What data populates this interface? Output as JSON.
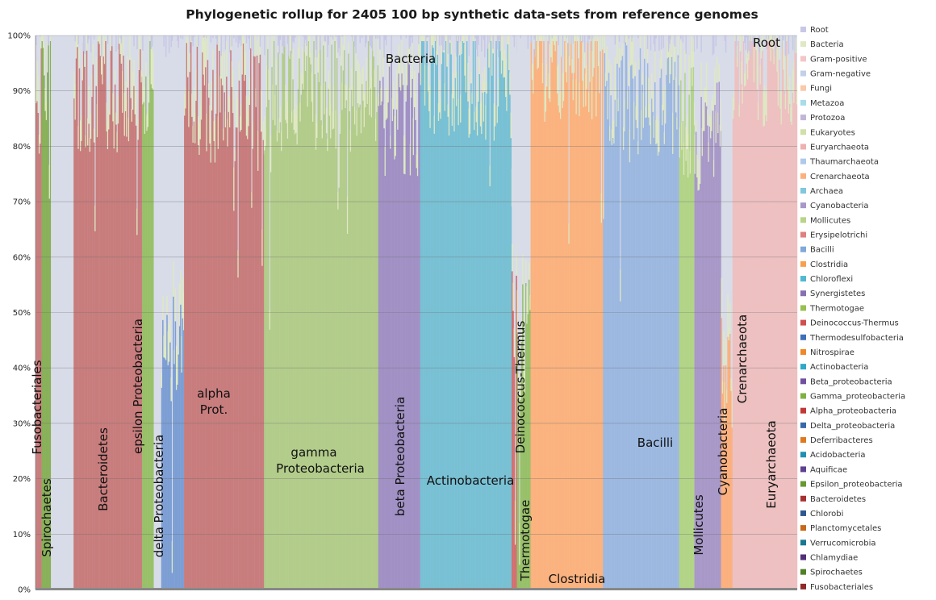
{
  "chart_data": {
    "type": "bar",
    "stacked": true,
    "title": "Phylogenetic rollup for 2405 100 bp synthetic data-sets from reference genomes",
    "ylim": [
      0,
      100
    ],
    "y_ticks": [
      "0%",
      "10%",
      "20%",
      "30%",
      "40%",
      "50%",
      "60%",
      "70%",
      "80%",
      "90%",
      "100%"
    ],
    "grid": true,
    "legend_position": "right",
    "legend": [
      {
        "name": "Root",
        "color": "#c8c8e6"
      },
      {
        "name": "Bacteria",
        "color": "#dfe8c4"
      },
      {
        "name": "Gram-positive",
        "color": "#f2c6c6"
      },
      {
        "name": "Gram-negative",
        "color": "#c2d0e8"
      },
      {
        "name": "Fungi",
        "color": "#fbc9a8"
      },
      {
        "name": "Metazoa",
        "color": "#a8dcea"
      },
      {
        "name": "Protozoa",
        "color": "#c2b6d8"
      },
      {
        "name": "Eukaryotes",
        "color": "#d0e0a8"
      },
      {
        "name": "Euryarchaeota",
        "color": "#eeb0b0"
      },
      {
        "name": "Thaumarchaeota",
        "color": "#b0c8ea"
      },
      {
        "name": "Crenarchaeota",
        "color": "#fbb07e"
      },
      {
        "name": "Archaea",
        "color": "#80c8dc"
      },
      {
        "name": "Cyanobacteria",
        "color": "#a898c8"
      },
      {
        "name": "Mollicutes",
        "color": "#b8d488"
      },
      {
        "name": "Erysipelotrichi",
        "color": "#e08080"
      },
      {
        "name": "Bacilli",
        "color": "#80a8d8"
      },
      {
        "name": "Clostridia",
        "color": "#f8a050"
      },
      {
        "name": "Chloroflexi",
        "color": "#50b8d0"
      },
      {
        "name": "Synergistetes",
        "color": "#8870b0"
      },
      {
        "name": "Thermotogae",
        "color": "#98c050"
      },
      {
        "name": "Deinococcus-Thermus",
        "color": "#d05050"
      },
      {
        "name": "Thermodesulfobacteria",
        "color": "#4070b8"
      },
      {
        "name": "Nitrospirae",
        "color": "#f08828"
      },
      {
        "name": "Actinobacteria",
        "color": "#30a8c8"
      },
      {
        "name": "Beta_proteobacteria",
        "color": "#7050a0"
      },
      {
        "name": "Gamma_proteobacteria",
        "color": "#80b040"
      },
      {
        "name": "Alpha_proteobacteria",
        "color": "#c03838"
      },
      {
        "name": "Delta_proteobacteria",
        "color": "#3868a8"
      },
      {
        "name": "Deferribacteres",
        "color": "#e07820"
      },
      {
        "name": "Acidobacteria",
        "color": "#2090b0"
      },
      {
        "name": "Aquificae",
        "color": "#604090"
      },
      {
        "name": "Epsilon_proteobacteria",
        "color": "#689830"
      },
      {
        "name": "Bacteroidetes",
        "color": "#a83030"
      },
      {
        "name": "Chlorobi",
        "color": "#305890"
      },
      {
        "name": "Planctomycetales",
        "color": "#c86818"
      },
      {
        "name": "Verrucomicrobia",
        "color": "#187890"
      },
      {
        "name": "Chlamydiae",
        "color": "#503078"
      },
      {
        "name": "Spirochaetes",
        "color": "#508028"
      },
      {
        "name": "Fusobacteriales",
        "color": "#902828"
      }
    ],
    "category_groups": [
      {
        "name": "Fusobacteriales",
        "color": "#c87c7c",
        "start": 0,
        "end": 0.8,
        "level": 0.88
      },
      {
        "name": "Spirochaetes",
        "color": "#88b058",
        "start": 0.8,
        "end": 2.0,
        "level": 0.94
      },
      {
        "name": "Bacteroidetes",
        "color": "#c87c7c",
        "start": 5.0,
        "end": 14.0,
        "level": 0.9
      },
      {
        "name": "epsilon Proteobacteria",
        "color": "#98c068",
        "start": 14.0,
        "end": 15.5,
        "level": 0.92
      },
      {
        "name": "delta Proteobacteria",
        "color": "#7c9ed4",
        "start": 16.5,
        "end": 19.5,
        "level": 0.43
      },
      {
        "name": "alpha Prot.",
        "color": "#c87c7c",
        "start": 19.5,
        "end": 30.0,
        "level": 0.88
      },
      {
        "name": "gamma Proteobacteria",
        "color": "#b2cc8a",
        "start": 30.0,
        "end": 45.0,
        "level": 0.9
      },
      {
        "name": "beta Proteobacteria",
        "color": "#a090c4",
        "start": 45.0,
        "end": 50.5,
        "level": 0.85
      },
      {
        "name": "Actinobacteria",
        "color": "#78c0d4",
        "start": 50.5,
        "end": 62.5,
        "level": 0.92
      },
      {
        "name": "Deinococcus-Thermus",
        "color": "#d27070",
        "start": 62.5,
        "end": 63.2,
        "level": 0.5
      },
      {
        "name": "Thermotogae",
        "color": "#98c068",
        "start": 63.2,
        "end": 65.0,
        "level": 0.45
      },
      {
        "name": "Clostridia",
        "color": "#fbb27e",
        "start": 65.0,
        "end": 74.5,
        "level": 0.94
      },
      {
        "name": "Bacilli",
        "color": "#9cb8e0",
        "start": 74.5,
        "end": 84.5,
        "level": 0.88
      },
      {
        "name": "Mollicutes",
        "color": "#b2d486",
        "start": 84.5,
        "end": 86.5,
        "level": 0.84
      },
      {
        "name": "Cyanobacteria",
        "color": "#a898c8",
        "start": 86.5,
        "end": 90.0,
        "level": 0.82
      },
      {
        "name": "Crenarchaeota",
        "color": "#fbb07e",
        "start": 90.0,
        "end": 91.5,
        "level": 0.4
      },
      {
        "name": "Euryarchaeota",
        "color": "#eec0c0",
        "start": 91.5,
        "end": 100.0,
        "level": 0.94
      }
    ],
    "region_labels": [
      {
        "text": "Root"
      },
      {
        "text": "Bacteria"
      },
      {
        "text": "Fusobacteriales"
      },
      {
        "text": "Spirochaetes"
      },
      {
        "text": "Bacteroidetes"
      },
      {
        "text": "epsilon Proteobacteria"
      },
      {
        "text": "delta Proteobacteria"
      },
      {
        "text": "alpha"
      },
      {
        "text": "Prot."
      },
      {
        "text": "gamma"
      },
      {
        "text": "Proteobacteria"
      },
      {
        "text": "beta Proteobacteria"
      },
      {
        "text": "Actinobacteria"
      },
      {
        "text": "Deinococcus-Thermus"
      },
      {
        "text": "Thermotogae"
      },
      {
        "text": "Clostridia"
      },
      {
        "text": "Bacilli"
      },
      {
        "text": "Mollicutes"
      },
      {
        "text": "Cyanobacteria"
      },
      {
        "text": "Crenarchaeota"
      },
      {
        "text": "Euryarchaeota"
      }
    ]
  }
}
